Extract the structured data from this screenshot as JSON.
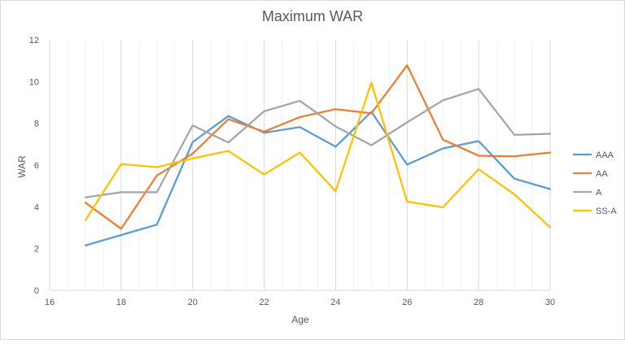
{
  "chart_data": {
    "type": "line",
    "title": "Maximum WAR",
    "xlabel": "Age",
    "ylabel": "WAR",
    "xlim": [
      16,
      30
    ],
    "ylim": [
      0,
      12
    ],
    "x_ticks": [
      16,
      18,
      20,
      22,
      24,
      26,
      28,
      30
    ],
    "y_ticks": [
      0,
      2,
      4,
      6,
      8,
      10,
      12
    ],
    "x_minor_step": 0.5,
    "grid": "vertical-major",
    "legend_position": "right",
    "x": [
      17,
      18,
      19,
      20,
      21,
      22,
      23,
      24,
      25,
      26,
      27,
      28,
      29,
      30
    ],
    "series": [
      {
        "name": "AAA",
        "color": "#5b9bd5",
        "values": [
          2.15,
          2.65,
          3.15,
          7.1,
          8.35,
          7.55,
          7.82,
          6.88,
          8.55,
          6.02,
          6.8,
          7.15,
          5.35,
          4.85
        ]
      },
      {
        "name": "AA",
        "color": "#ed7d31",
        "values": [
          4.2,
          2.95,
          5.5,
          6.55,
          8.2,
          7.6,
          8.3,
          8.68,
          8.48,
          10.78,
          7.22,
          6.45,
          6.42,
          6.6
        ]
      },
      {
        "name": "A",
        "color": "#a5a5a5",
        "values": [
          4.45,
          4.7,
          4.7,
          7.9,
          7.08,
          8.58,
          9.08,
          7.85,
          6.95,
          8.05,
          9.1,
          9.65,
          7.45,
          7.5
        ]
      },
      {
        "name": "SS-A",
        "color": "#ffc000",
        "values": [
          3.35,
          6.05,
          5.9,
          6.32,
          6.68,
          5.55,
          6.6,
          4.75,
          9.95,
          4.25,
          3.98,
          5.8,
          4.6,
          3.02
        ]
      }
    ]
  }
}
